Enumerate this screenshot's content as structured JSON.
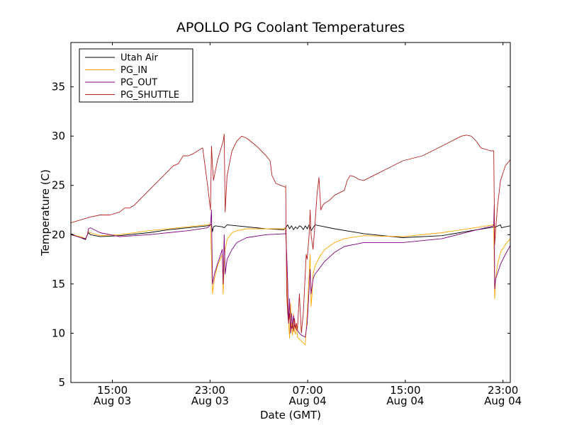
{
  "chart_data": {
    "type": "line",
    "title": "APOLLO PG Coolant Temperatures",
    "xlabel": "Date (GMT)",
    "ylabel": "Temperature (C)",
    "xlim": [
      0,
      45
    ],
    "ylim": [
      5,
      39.5
    ],
    "y_ticks": [
      5,
      10,
      15,
      20,
      25,
      30,
      35
    ],
    "x_ticks": [
      {
        "x": 4.25,
        "line1": "15:00",
        "line2": "Aug 03"
      },
      {
        "x": 14.25,
        "line1": "23:00",
        "line2": "Aug 03"
      },
      {
        "x": 24.25,
        "line1": "07:00",
        "line2": "Aug 04"
      },
      {
        "x": 34.25,
        "line1": "15:00",
        "line2": "Aug 04"
      },
      {
        "x": 44.25,
        "line1": "23:00",
        "line2": "Aug 04"
      }
    ],
    "legend_position": "top-left",
    "series": [
      {
        "name": "Utah Air",
        "color": "#000000",
        "x": [
          0,
          0.5,
          1,
          1.5,
          1.6,
          1.8,
          2,
          3,
          5,
          8,
          10,
          12,
          14,
          14.4,
          14.5,
          14.6,
          14.8,
          15.5,
          15.7,
          16,
          20,
          21.8,
          22,
          22.2,
          22.4,
          22.6,
          22.8,
          23,
          23.2,
          23.4,
          23.6,
          23.8,
          24,
          24.2,
          24.4,
          24.6,
          24.8,
          25,
          25.5,
          27,
          30,
          34,
          38,
          41,
          43.5,
          44,
          44.1,
          44.5,
          45
        ],
        "values": [
          20.1,
          19.9,
          19.7,
          19.5,
          19.8,
          20.2,
          20.0,
          19.8,
          19.9,
          20.2,
          20.5,
          20.7,
          20.9,
          21.0,
          20.3,
          20.8,
          20.9,
          20.8,
          20.7,
          21.0,
          20.6,
          20.5,
          20.7,
          21.0,
          20.6,
          20.9,
          20.5,
          20.8,
          20.6,
          20.9,
          20.8,
          20.5,
          20.9,
          20.6,
          21.0,
          20.4,
          20.7,
          21.0,
          20.9,
          20.6,
          20.1,
          19.7,
          19.9,
          20.4,
          20.8,
          21.0,
          20.7,
          20.8,
          20.9
        ]
      },
      {
        "name": "PG_IN",
        "color": "#ffa500",
        "x": [
          0,
          1,
          1.5,
          1.8,
          2,
          3,
          5,
          8,
          12,
          14,
          14.3,
          14.5,
          14.7,
          15,
          15.5,
          15.6,
          15.7,
          15.8,
          16,
          16.5,
          17,
          18,
          20,
          22,
          22,
          22.1,
          22.2,
          22.3,
          22.4,
          22.5,
          22.6,
          22.7,
          22.8,
          22.9,
          23,
          23.1,
          23.2,
          23.4,
          23.6,
          23.8,
          24,
          24.2,
          24.4,
          24.5,
          24.6,
          24.7,
          24.8,
          25,
          25.5,
          26,
          27,
          28,
          30,
          34,
          38,
          42,
          43.3,
          43.4,
          43.5,
          43.7,
          44,
          44.5,
          45
        ],
        "values": [
          20.0,
          19.8,
          19.6,
          20.3,
          20.2,
          19.9,
          20.0,
          20.4,
          20.8,
          21.0,
          21.1,
          14.0,
          15.5,
          16.8,
          18.0,
          14.0,
          17.0,
          18.5,
          19.5,
          20.2,
          20.4,
          20.6,
          20.6,
          20.6,
          20.5,
          17.5,
          13.0,
          11.0,
          9.5,
          13.0,
          10.5,
          9.8,
          12.0,
          10.2,
          9.9,
          11.0,
          9.6,
          9.4,
          9.2,
          9.0,
          8.8,
          12.0,
          16.0,
          18.0,
          12.7,
          14.0,
          16.0,
          16.8,
          17.8,
          18.5,
          19.2,
          19.6,
          19.9,
          19.8,
          20.2,
          20.8,
          21.0,
          13.5,
          15.5,
          17.0,
          18.2,
          19.0,
          19.6
        ]
      },
      {
        "name": "PG_OUT",
        "color": "#800080",
        "x": [
          0,
          1,
          1.5,
          1.7,
          1.8,
          2,
          3,
          5,
          8,
          12,
          14,
          14.3,
          14.4,
          14.5,
          14.7,
          15,
          15.5,
          15.6,
          15.7,
          15.8,
          16,
          16.5,
          17,
          18,
          20,
          22,
          22,
          22.1,
          22.2,
          22.3,
          22.4,
          22.5,
          22.6,
          22.7,
          22.8,
          22.9,
          23,
          23.2,
          23.4,
          23.6,
          23.8,
          24,
          24.2,
          24.4,
          24.5,
          24.6,
          24.7,
          24.8,
          25,
          26,
          27,
          28,
          30,
          34,
          38,
          42,
          43.3,
          43.35,
          43.4,
          43.5,
          44,
          44.5,
          45
        ],
        "values": [
          20.0,
          19.7,
          19.6,
          20.0,
          20.6,
          20.7,
          20.2,
          19.8,
          20.0,
          20.4,
          20.7,
          21.0,
          22.5,
          15.0,
          16.0,
          17.0,
          18.5,
          15.0,
          20.0,
          16.0,
          17.5,
          18.5,
          19.2,
          19.7,
          20.0,
          20.1,
          20.5,
          18.0,
          15.2,
          11.0,
          13.5,
          10.0,
          12.0,
          10.5,
          11.8,
          10.8,
          10.5,
          10.3,
          10.0,
          9.8,
          9.7,
          9.6,
          11.0,
          14.5,
          16.5,
          14.0,
          14.8,
          15.5,
          16.0,
          17.3,
          18.2,
          18.8,
          19.2,
          19.2,
          19.6,
          20.6,
          20.9,
          23.0,
          14.5,
          15.5,
          17.0,
          18.0,
          18.9
        ]
      },
      {
        "name": "PG_SHUTTLE",
        "color": "#b22222",
        "x": [
          0,
          2,
          3,
          4,
          5,
          5.5,
          6,
          6.5,
          7,
          7.5,
          8,
          8.5,
          9,
          9.5,
          10,
          10.3,
          10.5,
          11,
          11.5,
          12,
          12.5,
          13,
          13.3,
          13.5,
          14,
          14.3,
          14.4,
          14.5,
          14.6,
          14.8,
          15,
          15.3,
          15.6,
          15.7,
          15.8,
          16,
          16.5,
          17,
          17.5,
          18,
          19,
          20,
          20.4,
          20.6,
          21,
          21.5,
          22,
          22,
          22.1,
          22.2,
          22.3,
          22.4,
          22.5,
          22.6,
          22.7,
          22.8,
          22.9,
          23,
          23.1,
          23.2,
          23.4,
          23.6,
          23.8,
          23.9,
          24,
          24.1,
          24.2,
          24.4,
          24.5,
          24.6,
          24.8,
          25,
          25.2,
          25.4,
          25.6,
          25.8,
          26,
          26.5,
          27,
          28,
          28.3,
          28.6,
          29,
          29.5,
          30,
          31,
          32,
          33,
          34,
          36,
          38,
          39,
          40,
          40.5,
          41,
          41.5,
          42,
          43,
          43.3,
          43.4,
          43.5,
          43.7,
          44,
          44.5,
          45
        ],
        "values": [
          21.2,
          21.8,
          22.0,
          22.0,
          22.3,
          22.7,
          22.7,
          23.0,
          23.5,
          24.0,
          24.5,
          25.0,
          25.5,
          26.0,
          26.5,
          26.8,
          27.0,
          27.2,
          28.0,
          28.0,
          28.2,
          28.5,
          28.7,
          28.8,
          25.0,
          22.5,
          29.0,
          27.0,
          25.5,
          26.5,
          27.5,
          28.5,
          29.5,
          30.2,
          22.3,
          26.0,
          28.5,
          29.5,
          30.0,
          29.8,
          29.0,
          28.0,
          27.5,
          26.0,
          25.2,
          25.0,
          24.8,
          25.0,
          14.0,
          12.0,
          11.0,
          12.0,
          10.8,
          10.5,
          11.0,
          10.2,
          11.5,
          10.5,
          11.0,
          10.3,
          14.0,
          10.0,
          12.0,
          14.0,
          16.0,
          18.0,
          17.5,
          20.0,
          22.5,
          20.0,
          18.5,
          21.0,
          24.0,
          25.8,
          22.5,
          23.0,
          23.2,
          23.5,
          24.0,
          24.5,
          25.5,
          26.0,
          25.9,
          25.6,
          25.5,
          26.0,
          26.5,
          27.0,
          27.5,
          28.0,
          29.0,
          29.5,
          30.0,
          30.1,
          30.0,
          29.5,
          28.8,
          28.5,
          28.5,
          19.0,
          20.5,
          23.0,
          25.5,
          27.0,
          27.6
        ]
      }
    ]
  }
}
